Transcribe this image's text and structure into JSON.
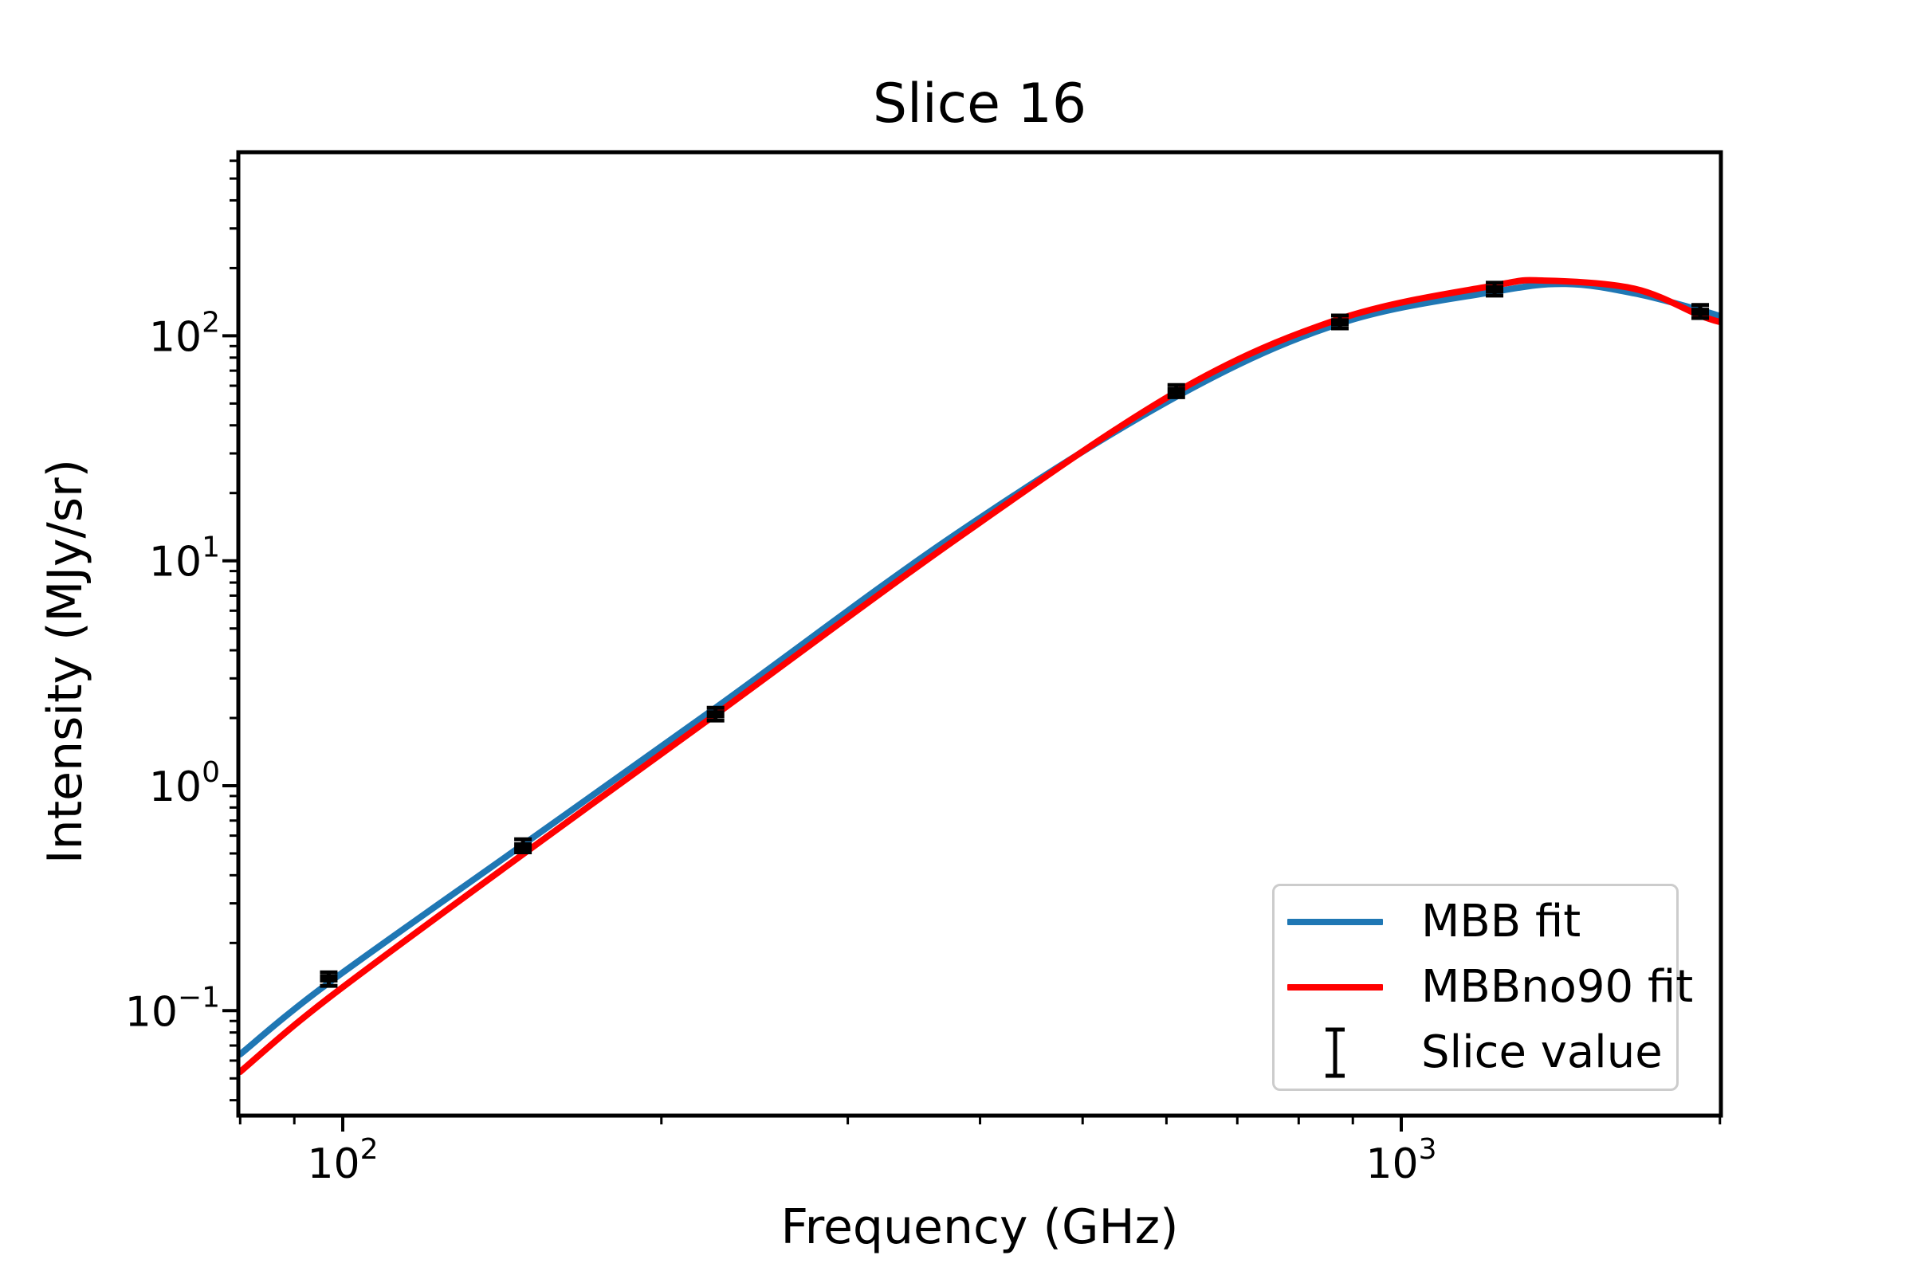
{
  "chart_data": {
    "type": "line",
    "title": "Slice 16",
    "xlabel": "Frequency (GHz)",
    "ylabel": "Intensity (MJy/sr)",
    "x_scale": "log",
    "y_scale": "log",
    "xlim": [
      79.7,
      2004
    ],
    "ylim": [
      0.0342,
      655
    ],
    "x_major_tick_exponents": [
      2,
      3
    ],
    "y_major_tick_exponents": [
      2,
      1,
      0,
      -1
    ],
    "grid": false,
    "legend": {
      "position": "lower right",
      "entries": [
        {
          "label": "MBB fit",
          "color": "#1f77b4",
          "type": "line"
        },
        {
          "label": "MBBno90 fit",
          "color": "#ff0000",
          "type": "line"
        },
        {
          "label": "Slice value",
          "color": "#000000",
          "type": "errorbar"
        }
      ]
    },
    "series": [
      {
        "name": "MBB fit",
        "color": "#1f77b4",
        "points": [
          [
            80,
            0.064
          ],
          [
            97,
            0.133
          ],
          [
            148,
            0.547
          ],
          [
            225,
            2.22
          ],
          [
            380,
            13.2
          ],
          [
            613,
            53.6
          ],
          [
            875,
            113.5
          ],
          [
            1225,
            157
          ],
          [
            1430,
            170
          ],
          [
            1660,
            154.5
          ],
          [
            1916,
            130
          ],
          [
            2004,
            122
          ]
        ]
      },
      {
        "name": "MBBno90 fit",
        "color": "#ff0000",
        "points": [
          [
            80,
            0.0535
          ],
          [
            97,
            0.114
          ],
          [
            148,
            0.496
          ],
          [
            225,
            2.07
          ],
          [
            380,
            12.5
          ],
          [
            613,
            56.2
          ],
          [
            875,
            119
          ],
          [
            1225,
            167.5
          ],
          [
            1364,
            176
          ],
          [
            1660,
            162
          ],
          [
            1916,
            123
          ],
          [
            2004,
            115
          ]
        ]
      }
    ],
    "data_points": {
      "name": "Slice value",
      "color": "#000000",
      "points": [
        {
          "freq": 97,
          "intensity": 0.139,
          "err_lo": 0.129,
          "err_hi": 0.148
        },
        {
          "freq": 148,
          "intensity": 0.538,
          "err_lo": 0.506,
          "err_hi": 0.578
        },
        {
          "freq": 225,
          "intensity": 2.08,
          "err_lo": 1.95,
          "err_hi": 2.22
        },
        {
          "freq": 613,
          "intensity": 56.7,
          "err_lo": 53.4,
          "err_hi": 60.4
        },
        {
          "freq": 875,
          "intensity": 115.0,
          "err_lo": 108.0,
          "err_hi": 123.0
        },
        {
          "freq": 1225,
          "intensity": 161.0,
          "err_lo": 151.0,
          "err_hi": 172.0
        },
        {
          "freq": 1916,
          "intensity": 128.0,
          "err_lo": 120.0,
          "err_hi": 137.0
        }
      ]
    }
  }
}
